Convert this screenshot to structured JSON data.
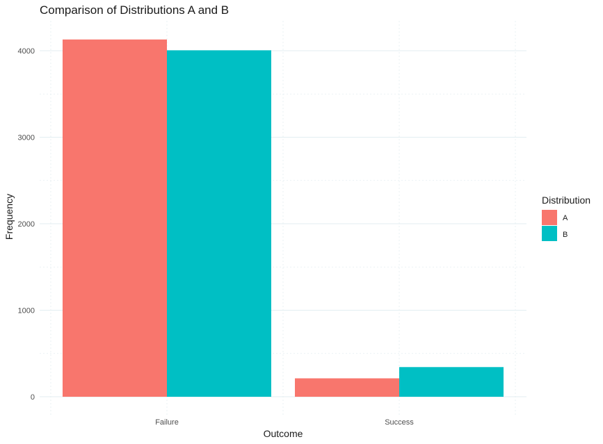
{
  "chart_data": {
    "type": "bar",
    "title": "Comparison of Distributions A and B",
    "xlabel": "Outcome",
    "ylabel": "Frequency",
    "categories": [
      "Failure",
      "Success"
    ],
    "series": [
      {
        "name": "A",
        "values": [
          4130,
          213
        ],
        "color": "#F8766D"
      },
      {
        "name": "B",
        "values": [
          4005,
          343
        ],
        "color": "#00BFC4"
      }
    ],
    "ylim": [
      0,
      4300
    ],
    "yticks": [
      0,
      1000,
      2000,
      3000,
      4000
    ],
    "yminor": [
      500,
      1500,
      2500,
      3500
    ],
    "grid": true,
    "legend": {
      "title": "Distribution",
      "position": "right"
    }
  }
}
